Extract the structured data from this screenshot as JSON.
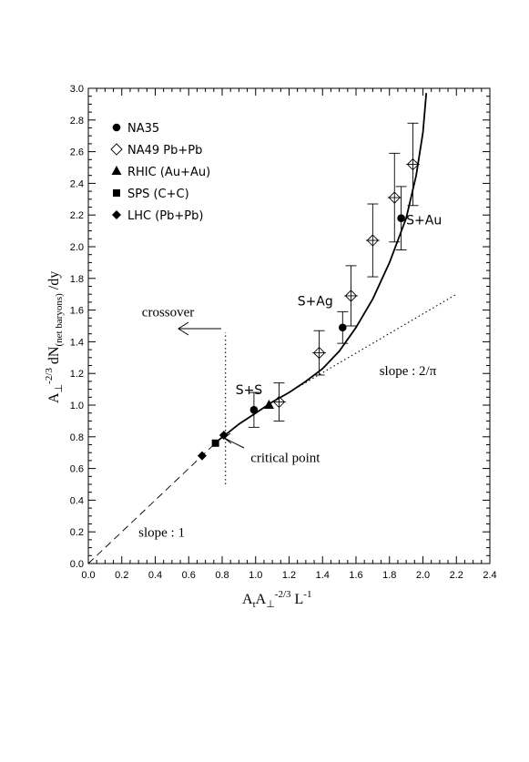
{
  "chart_data": {
    "type": "scatter",
    "xlabel": {
      "main": "A",
      "sub1": "t",
      "mid": "A",
      "sub2": "⊥",
      "sup": "-2/3",
      "tail": " L",
      "sup2": "-1"
    },
    "ylabel": {
      "main": "A",
      "sub1": "⊥",
      "sup": "-2/3",
      "mid": " dN",
      "sub2": "(net baryons)",
      "tail": " /dy"
    },
    "xlim": [
      0.0,
      2.4
    ],
    "ylim": [
      0.0,
      3.0
    ],
    "x_ticks": [
      {
        "v": 0.0,
        "t": "0.0"
      },
      {
        "v": 0.2,
        "t": "0.2"
      },
      {
        "v": 0.4,
        "t": "0.4"
      },
      {
        "v": 0.6,
        "t": "0.6"
      },
      {
        "v": 0.8,
        "t": "0.8"
      },
      {
        "v": 1.0,
        "t": "1.0"
      },
      {
        "v": 1.2,
        "t": "1.2"
      },
      {
        "v": 1.4,
        "t": "1.4"
      },
      {
        "v": 1.6,
        "t": "1.6"
      },
      {
        "v": 1.8,
        "t": "1.8"
      },
      {
        "v": 2.0,
        "t": "2.0"
      },
      {
        "v": 2.2,
        "t": "2.2"
      },
      {
        "v": 2.4,
        "t": "2.4"
      }
    ],
    "y_ticks": [
      {
        "v": 0.0,
        "t": "0.0"
      },
      {
        "v": 0.2,
        "t": "0.2"
      },
      {
        "v": 0.4,
        "t": "0.4"
      },
      {
        "v": 0.6,
        "t": "0.6"
      },
      {
        "v": 0.8,
        "t": "0.8"
      },
      {
        "v": 1.0,
        "t": "1.0"
      },
      {
        "v": 1.2,
        "t": "1.2"
      },
      {
        "v": 1.4,
        "t": "1.4"
      },
      {
        "v": 1.6,
        "t": "1.6"
      },
      {
        "v": 1.8,
        "t": "1.8"
      },
      {
        "v": 2.0,
        "t": "2.0"
      },
      {
        "v": 2.2,
        "t": "2.2"
      },
      {
        "v": 2.4,
        "t": "2.4"
      },
      {
        "v": 2.6,
        "t": "2.6"
      },
      {
        "v": 2.8,
        "t": "2.8"
      },
      {
        "v": 3.0,
        "t": "3.0"
      }
    ],
    "legend_position": "top-left",
    "series": [
      {
        "name": "NA35",
        "marker": "filled-circle",
        "points": [
          {
            "x": 0.99,
            "y": 0.97,
            "yerr": 0.11,
            "xerr": 0.0
          },
          {
            "x": 1.52,
            "y": 1.49,
            "yerr": 0.1,
            "xerr": 0.0
          },
          {
            "x": 1.87,
            "y": 2.18,
            "yerr": 0.2,
            "xerr": 0.0
          }
        ]
      },
      {
        "name": "NA49 Pb+Pb",
        "marker": "open-diamond",
        "points": [
          {
            "x": 1.14,
            "y": 1.02,
            "yerr": 0.12,
            "xerr": 0.04
          },
          {
            "x": 1.38,
            "y": 1.33,
            "yerr": 0.14,
            "xerr": 0.04
          },
          {
            "x": 1.57,
            "y": 1.69,
            "yerr": 0.19,
            "xerr": 0.04
          },
          {
            "x": 1.7,
            "y": 2.04,
            "yerr": 0.23,
            "xerr": 0.04
          },
          {
            "x": 1.83,
            "y": 2.31,
            "yerr": 0.28,
            "xerr": 0.04
          },
          {
            "x": 1.94,
            "y": 2.52,
            "yerr": 0.26,
            "xerr": 0.04
          }
        ]
      },
      {
        "name": "RHIC (Au+Au)",
        "marker": "filled-triangle",
        "points": [
          {
            "x": 1.08,
            "y": 1.0
          }
        ]
      },
      {
        "name": "SPS (C+C)",
        "marker": "filled-square",
        "points": [
          {
            "x": 0.76,
            "y": 0.76
          }
        ]
      },
      {
        "name": "LHC (Pb+Pb)",
        "marker": "filled-diamond",
        "points": [
          {
            "x": 0.68,
            "y": 0.68
          },
          {
            "x": 0.81,
            "y": 0.81
          }
        ]
      }
    ],
    "lines": [
      {
        "style": "dashed",
        "desc": "slope 1",
        "points": [
          [
            0.0,
            0.0
          ],
          [
            0.8,
            0.8
          ]
        ]
      },
      {
        "style": "dotted",
        "desc": "slope 2/pi",
        "points": [
          [
            1.15,
            1.05
          ],
          [
            2.2,
            1.7
          ]
        ]
      },
      {
        "style": "dotted",
        "desc": "crossover boundary",
        "points": [
          [
            0.82,
            0.5
          ],
          [
            0.82,
            1.46
          ]
        ]
      },
      {
        "style": "solid",
        "desc": "fit curve",
        "points": [
          [
            0.78,
            0.78
          ],
          [
            0.9,
            0.88
          ],
          [
            1.0,
            0.95
          ],
          [
            1.1,
            1.02
          ],
          [
            1.2,
            1.08
          ],
          [
            1.3,
            1.15
          ],
          [
            1.4,
            1.23
          ],
          [
            1.5,
            1.34
          ],
          [
            1.6,
            1.49
          ],
          [
            1.7,
            1.67
          ],
          [
            1.8,
            1.9
          ],
          [
            1.9,
            2.18
          ],
          [
            1.96,
            2.45
          ],
          [
            2.0,
            2.72
          ],
          [
            2.02,
            2.97
          ]
        ]
      }
    ],
    "annotations": [
      {
        "text": "crossover",
        "x": 0.32,
        "y": 1.56,
        "font": "serif"
      },
      {
        "text": "critical point",
        "x": 0.97,
        "y": 0.64,
        "font": "serif"
      },
      {
        "text": "slope : 1",
        "x": 0.3,
        "y": 0.17,
        "font": "serif"
      },
      {
        "text": "slope : 2/π",
        "x": 1.74,
        "y": 1.19,
        "font": "serif"
      },
      {
        "text": "S+S",
        "x": 0.88,
        "y": 1.07,
        "font": "sans"
      },
      {
        "text": "S+Ag",
        "x": 1.25,
        "y": 1.63,
        "font": "sans"
      },
      {
        "text": "S+Au",
        "x": 1.9,
        "y": 2.14,
        "font": "sans"
      }
    ]
  }
}
